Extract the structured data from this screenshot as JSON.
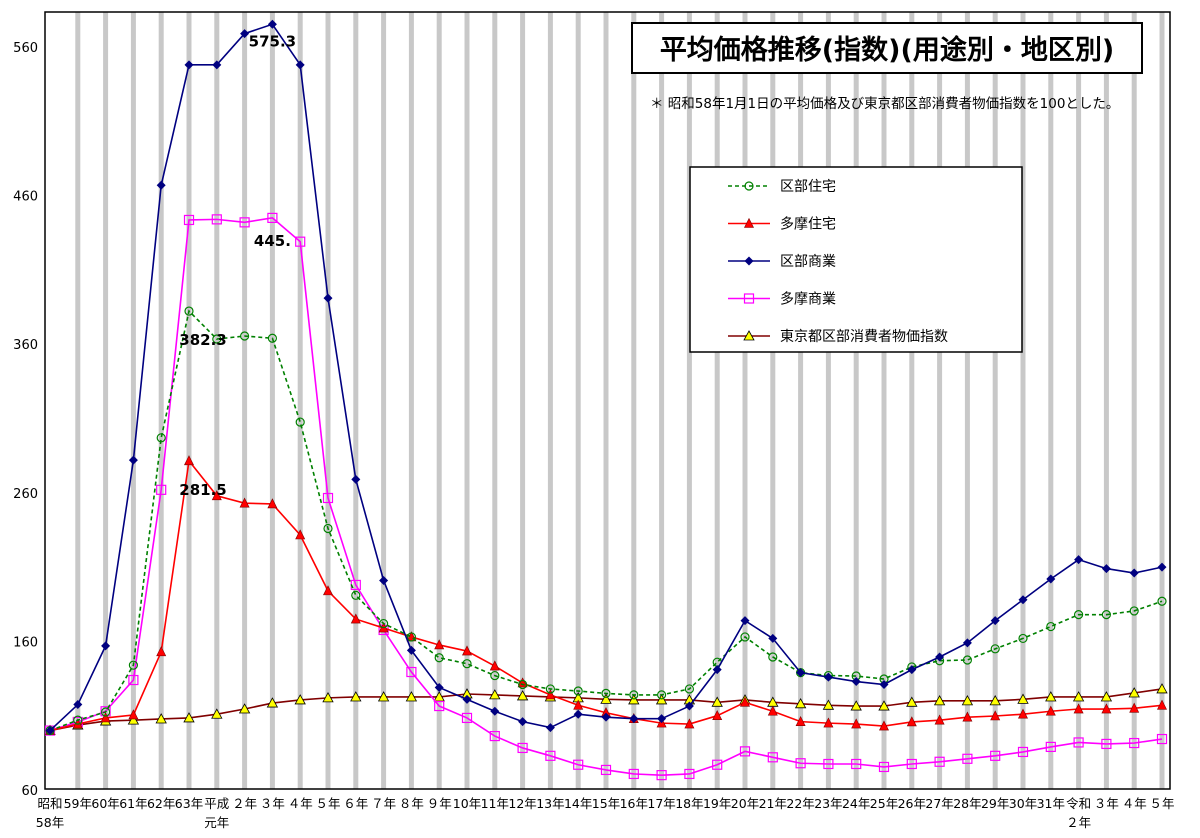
{
  "chart_data": {
    "type": "line",
    "title": "平均価格推移(指数)(用途別・地区別)",
    "note": "＊ 昭和58年1月1日の平均価格及び東京都区部消費者物価指数を100とした。",
    "xlabel": "",
    "ylabel": "",
    "ylim": [
      60,
      560
    ],
    "yticks": [
      60,
      160,
      260,
      360,
      460,
      560
    ],
    "grid": "vertical bars at each category",
    "legend_placement": "upper-right",
    "categories": [
      [
        "昭和",
        "58年"
      ],
      [
        "59年",
        ""
      ],
      [
        "60年",
        ""
      ],
      [
        "61年",
        ""
      ],
      [
        "62年",
        ""
      ],
      [
        "63年",
        ""
      ],
      [
        "平成",
        "元年"
      ],
      [
        "２年",
        ""
      ],
      [
        "３年",
        ""
      ],
      [
        "４年",
        ""
      ],
      [
        "５年",
        ""
      ],
      [
        "６年",
        ""
      ],
      [
        "７年",
        ""
      ],
      [
        "８年",
        ""
      ],
      [
        "９年",
        ""
      ],
      [
        "10年",
        ""
      ],
      [
        "11年",
        ""
      ],
      [
        "12年",
        ""
      ],
      [
        "13年",
        ""
      ],
      [
        "14年",
        ""
      ],
      [
        "15年",
        ""
      ],
      [
        "16年",
        ""
      ],
      [
        "17年",
        ""
      ],
      [
        "18年",
        ""
      ],
      [
        "19年",
        ""
      ],
      [
        "20年",
        ""
      ],
      [
        "21年",
        ""
      ],
      [
        "22年",
        ""
      ],
      [
        "23年",
        ""
      ],
      [
        "24年",
        ""
      ],
      [
        "25年",
        ""
      ],
      [
        "26年",
        ""
      ],
      [
        "27年",
        ""
      ],
      [
        "28年",
        ""
      ],
      [
        "29年",
        ""
      ],
      [
        "30年",
        ""
      ],
      [
        "31年",
        ""
      ],
      [
        "令和",
        "２年"
      ],
      [
        "３年",
        ""
      ],
      [
        "４年",
        ""
      ],
      [
        "５年",
        ""
      ]
    ],
    "series": [
      {
        "name": "区部住宅",
        "color": "#008000",
        "marker": "circle",
        "dash": true,
        "values": [
          100,
          107,
          112.5,
          144,
          297,
          382.3,
          363.5,
          365.5,
          364,
          307.6,
          236,
          191,
          172,
          163,
          149,
          145,
          137,
          131,
          128,
          126.6,
          125,
          124,
          124,
          128,
          146,
          163,
          149.5,
          139,
          137,
          136.7,
          134.7,
          142.8,
          147,
          147.5,
          155,
          162,
          170,
          178,
          178,
          180.5,
          187
        ]
      },
      {
        "name": "多摩住宅",
        "color": "#FF0000",
        "marker": "triangle",
        "values": [
          100,
          104.4,
          108.5,
          110.5,
          153,
          281.5,
          258,
          253,
          252.5,
          231.6,
          194,
          175,
          169,
          163,
          157.6,
          153.5,
          143.4,
          132,
          124,
          117,
          112,
          108,
          105,
          104.4,
          110,
          119,
          113,
          106,
          105,
          104.4,
          103,
          105.8,
          107,
          109,
          109.8,
          111,
          113,
          114.5,
          114.5,
          115,
          117
        ]
      },
      {
        "name": "区部商業",
        "color": "#000080",
        "marker": "diamond",
        "values": [
          100,
          117.5,
          157,
          282,
          467,
          548,
          548,
          569,
          575.3,
          548,
          391,
          269,
          201,
          154,
          129,
          121,
          113,
          106,
          102,
          111,
          109,
          108,
          108,
          116.5,
          141,
          174,
          162,
          139,
          136,
          133,
          131,
          141,
          149.5,
          159,
          174,
          188,
          202,
          215,
          209,
          206,
          210
        ]
      },
      {
        "name": "多摩商業",
        "color": "#FF00FF",
        "marker": "square",
        "values": [
          100,
          105.8,
          113,
          134,
          262,
          443.6,
          444,
          442,
          445,
          429,
          256.5,
          198,
          167.7,
          139.4,
          116.5,
          108.5,
          96.3,
          88.3,
          83,
          77,
          73.5,
          70.8,
          70,
          70.8,
          77,
          86,
          82,
          78,
          77.5,
          77.5,
          75.5,
          77.5,
          79,
          81,
          83,
          85.6,
          89,
          92,
          91,
          91.6,
          94.3
        ]
      },
      {
        "name": "東京都区部消費者物価指数",
        "color": "#800000",
        "marker": "triangle-yellow",
        "values": [
          100,
          103.7,
          106.4,
          107,
          107.8,
          108.5,
          111,
          114.5,
          118.5,
          120.6,
          122,
          122.6,
          122.6,
          122.6,
          122.6,
          124.6,
          124,
          123.3,
          122.6,
          122,
          121,
          120.6,
          120.6,
          120.6,
          119,
          120.6,
          119,
          118,
          117,
          116.5,
          116.5,
          119,
          120,
          120,
          120,
          121,
          122.6,
          122.6,
          122.6,
          125.3,
          128
        ]
      }
    ],
    "annotations": [
      {
        "text": "575.3",
        "series": 2,
        "index": 8
      },
      {
        "text": "445.",
        "series": 3,
        "index": 8
      },
      {
        "text": "382.3",
        "series": 0,
        "index": 5
      },
      {
        "text": "281.5",
        "series": 1,
        "index": 5
      }
    ]
  }
}
